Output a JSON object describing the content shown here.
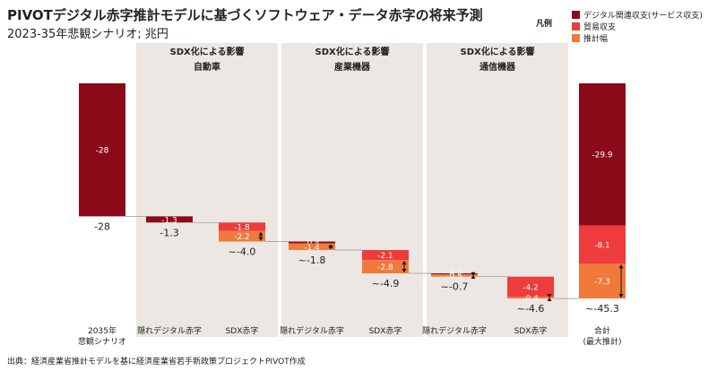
{
  "title": "PIVOTデジタル赤字推計モデルに基づくソフトウェア・データ赤字の将来予測",
  "subtitle": "2023-35年悲観シナリオ; 兆円",
  "legend": {
    "title": "凡例",
    "items": [
      {
        "label": "デジタル関連収支(サービス収支)",
        "color": "#8b0a1a"
      },
      {
        "label": "貿易収支",
        "color": "#ee3b3b"
      },
      {
        "label": "推計幅",
        "color": "#f07a3c"
      }
    ]
  },
  "source": "出典：経済産業省推計モデルを基に経済産業省若手新政策プロジェクトPIVOT作成",
  "colors": {
    "digital": "#8b0a1a",
    "trade": "#ee3b3b",
    "range": "#f07a3c",
    "panel": "#ece7e2"
  },
  "chart_data": {
    "type": "waterfall",
    "panels": [
      {
        "header": [
          "SDX化による影響",
          "自動車"
        ]
      },
      {
        "header": [
          "SDX化による影響",
          "産業機器"
        ]
      },
      {
        "header": [
          "SDX化による影響",
          "通信機器"
        ]
      }
    ],
    "categories": [
      "2035年\n悲観シナリオ",
      "隠れデジタル赤字",
      "SDX赤字",
      "隠れデジタル赤字",
      "SDX赤字",
      "隠れデジタル赤字",
      "SDX赤字",
      "合計\n(最大推計)"
    ],
    "bars": [
      {
        "segments": [
          {
            "kind": "digital",
            "value": -28,
            "label": "-28"
          }
        ],
        "total_label": "-28"
      },
      {
        "segments": [
          {
            "kind": "digital",
            "value": -1.3,
            "label": "-1.3"
          }
        ],
        "total_label": "-1.3"
      },
      {
        "segments": [
          {
            "kind": "trade",
            "value": -1.8,
            "label": "-1.8"
          },
          {
            "kind": "range",
            "value": -2.2,
            "label": "-2.2"
          }
        ],
        "total_label": "~-4.0",
        "range_marker": true
      },
      {
        "segments": [
          {
            "kind": "digital",
            "value": -0.4,
            "label": "-0.4"
          },
          {
            "kind": "range",
            "value": -1.4,
            "label": "-1.4"
          }
        ],
        "total_label": "~-1.8",
        "range_marker": true
      },
      {
        "segments": [
          {
            "kind": "trade",
            "value": -2.1,
            "label": "-2.1"
          },
          {
            "kind": "range",
            "value": -2.8,
            "label": "-2.8"
          }
        ],
        "total_label": "~-4.9",
        "range_marker": true
      },
      {
        "segments": [
          {
            "kind": "digital",
            "value": -0.2,
            "label": "-0.2"
          },
          {
            "kind": "range",
            "value": -0.5,
            "label": "-0.5"
          }
        ],
        "total_label": "~-0.7",
        "range_marker": true
      },
      {
        "segments": [
          {
            "kind": "trade",
            "value": -4.2,
            "label": "-4.2"
          },
          {
            "kind": "range",
            "value": -0.4,
            "label": "-0.4"
          }
        ],
        "total_label": "~-4.6",
        "range_marker": true
      },
      {
        "segments": [
          {
            "kind": "digital",
            "value": -29.9,
            "label": "-29.9"
          },
          {
            "kind": "trade",
            "value": -8.1,
            "label": "-8.1"
          },
          {
            "kind": "range",
            "value": -7.3,
            "label": "-7.3"
          }
        ],
        "total_label": "~-45.3",
        "range_marker": true,
        "is_total": true
      }
    ]
  }
}
